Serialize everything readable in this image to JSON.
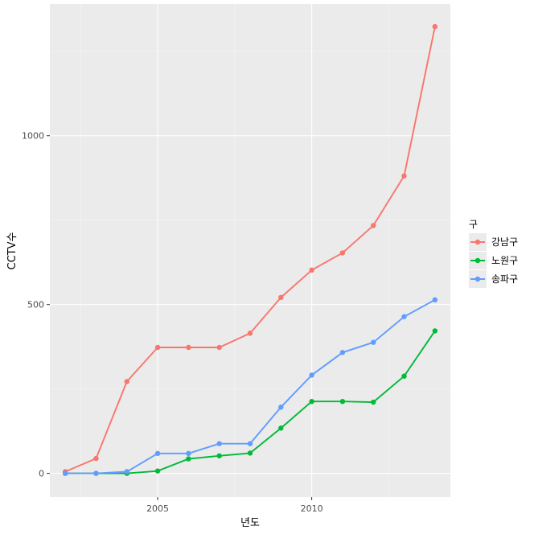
{
  "chart_data": {
    "type": "line",
    "xlabel": "년도",
    "ylabel": "CCTV수",
    "xlim": [
      2001.5,
      2014.5
    ],
    "ylim": [
      -70,
      1390
    ],
    "x_ticks": [
      2005,
      2010
    ],
    "x_tick_labels": [
      "2005",
      "2010"
    ],
    "y_ticks": [
      0,
      500,
      1000
    ],
    "y_tick_labels": [
      "0",
      "500",
      "1000"
    ],
    "grid": true,
    "legend": {
      "title": "구",
      "position": "right"
    },
    "x": [
      2002,
      2003,
      2004,
      2005,
      2006,
      2007,
      2008,
      2009,
      2010,
      2011,
      2012,
      2013,
      2014
    ],
    "series": [
      {
        "name": "강남구",
        "color": "#F8766D",
        "values": [
          5,
          44,
          272,
          373,
          373,
          373,
          415,
          521,
          602,
          653,
          734,
          881,
          1323
        ]
      },
      {
        "name": "노원구",
        "color": "#00BA38",
        "values": [
          0,
          0,
          0,
          7,
          43,
          52,
          60,
          134,
          213,
          213,
          211,
          288,
          422
        ]
      },
      {
        "name": "송파구",
        "color": "#619CFF",
        "values": [
          0,
          0,
          5,
          59,
          59,
          88,
          88,
          196,
          291,
          358,
          388,
          464,
          514
        ]
      }
    ]
  }
}
